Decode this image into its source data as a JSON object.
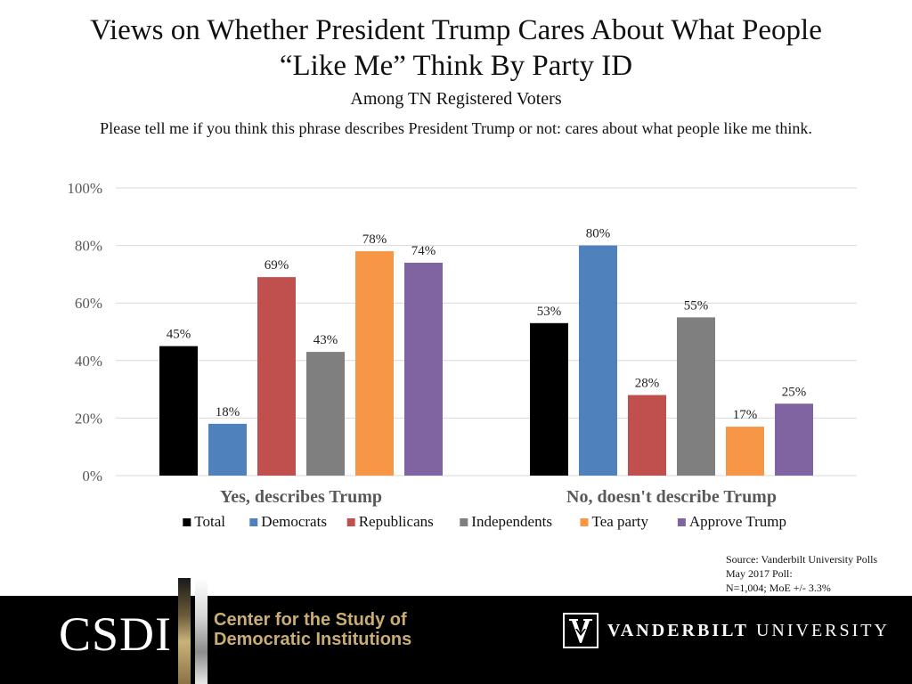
{
  "header": {
    "title_line1": "Views on Whether President Trump Cares About What People",
    "title_line2": "“Like Me” Think By Party ID",
    "subtitle": "Among TN Registered Voters",
    "question": "Please tell me if you think this phrase describes President Trump or not: cares about what people like me think."
  },
  "chart_data": {
    "type": "bar",
    "title": "Views on Whether President Trump Cares About What People “Like Me” Think By Party ID",
    "subtitle": "Among TN Registered Voters",
    "categories": [
      "Yes, describes Trump",
      "No, doesn't describe Trump"
    ],
    "series": [
      {
        "name": "Total",
        "color": "#000000",
        "values": [
          45,
          53
        ]
      },
      {
        "name": "Democrats",
        "color": "#4f81bd",
        "values": [
          18,
          80
        ]
      },
      {
        "name": "Republicans",
        "color": "#c0504d",
        "values": [
          69,
          28
        ]
      },
      {
        "name": "Independents",
        "color": "#7f7f7f",
        "values": [
          43,
          55
        ]
      },
      {
        "name": "Tea party",
        "color": "#f79646",
        "values": [
          78,
          17
        ]
      },
      {
        "name": "Approve Trump",
        "color": "#8064a2",
        "values": [
          74,
          25
        ]
      }
    ],
    "yticks": [
      0,
      20,
      40,
      60,
      80,
      100
    ],
    "ylim": [
      0,
      100
    ],
    "value_suffix": "%",
    "grid": true,
    "legend_position": "bottom"
  },
  "source": {
    "line1": "Source: Vanderbilt University Polls",
    "line2": "May 2017 Poll:",
    "line3": "N=1,004; MoE +/- 3.3%"
  },
  "footer": {
    "csdi": "CSDI",
    "center_line1": "Center for the Study of",
    "center_line2": "Democratic Institutions",
    "vu_bold": "VANDERBILT",
    "vu_rest": " UNIVERSITY",
    "colors": {
      "background": "#000000",
      "gold": "#c9ad74"
    }
  }
}
